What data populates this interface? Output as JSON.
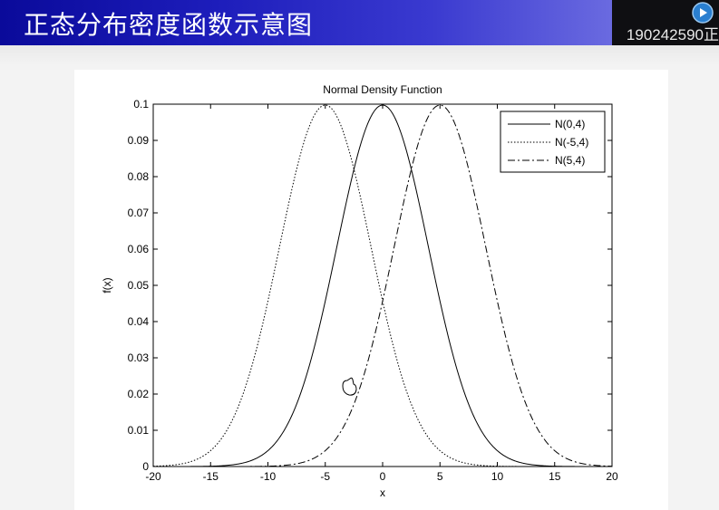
{
  "slide": {
    "title": "正态分布密度函数示意图",
    "page_id": "190242590正"
  },
  "icons": {
    "play": "play-icon",
    "cursor": "hand-cursor-icon"
  },
  "chart_data": {
    "type": "line",
    "title": "Normal Density Function",
    "xlabel": "x",
    "ylabel": "f(x)",
    "xlim": [
      -20,
      20
    ],
    "ylim": [
      0,
      0.1
    ],
    "xticks": [
      -20,
      -15,
      -10,
      -5,
      0,
      5,
      10,
      15,
      20
    ],
    "yticks": [
      0,
      0.01,
      0.02,
      0.03,
      0.04,
      0.05,
      0.06,
      0.07,
      0.08,
      0.09,
      0.1
    ],
    "grid": false,
    "legend_position": "top-right",
    "series": [
      {
        "name": "N(0,4)",
        "mean": 0,
        "sd": 4,
        "style": "solid",
        "color": "#000000"
      },
      {
        "name": "N(-5,4)",
        "mean": -5,
        "sd": 4,
        "style": "dotted",
        "color": "#000000"
      },
      {
        "name": "N(5,4)",
        "mean": 5,
        "sd": 4,
        "style": "dashdot",
        "color": "#000000"
      }
    ]
  }
}
